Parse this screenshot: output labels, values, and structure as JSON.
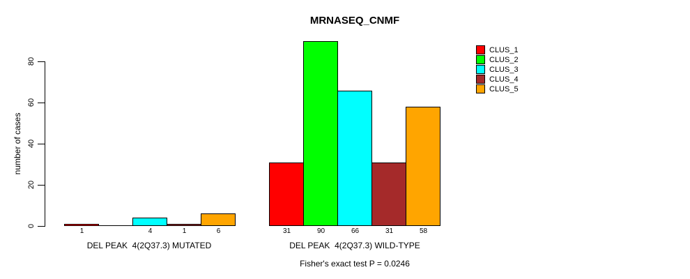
{
  "chart": {
    "title": "MRNASEQ_CNMF",
    "ylabel": "number of cases",
    "annotation": "Fisher's exact test P = 0.0246"
  },
  "chart_data": {
    "type": "bar",
    "title": "MRNASEQ_CNMF",
    "xlabel": "",
    "ylabel": "number of cases",
    "ylim": [
      0,
      90
    ],
    "yticks": [
      0,
      20,
      40,
      60,
      80
    ],
    "grid": false,
    "legend_position": "top-right",
    "categories": [
      "DEL PEAK  4(2Q37.3) MUTATED",
      "DEL PEAK  4(2Q37.3) WILD-TYPE"
    ],
    "series": [
      {
        "name": "CLUS_1",
        "color": "#FF0000",
        "values": [
          1,
          31
        ]
      },
      {
        "name": "CLUS_2",
        "color": "#00FF00",
        "values": [
          0,
          90
        ]
      },
      {
        "name": "CLUS_3",
        "color": "#00FFFF",
        "values": [
          4,
          66
        ]
      },
      {
        "name": "CLUS_4",
        "color": "#A52A2A",
        "values": [
          1,
          31
        ]
      },
      {
        "name": "CLUS_5",
        "color": "#FFA500",
        "values": [
          6,
          58
        ]
      }
    ],
    "bar_value_labels": [
      "1",
      "",
      "4",
      "1",
      "6",
      "31",
      "90",
      "66",
      "31",
      "58"
    ],
    "annotation": "Fisher's exact test P = 0.0246"
  },
  "legend": {
    "items": [
      {
        "label": "CLUS_1",
        "color": "#FF0000"
      },
      {
        "label": "CLUS_2",
        "color": "#00FF00"
      },
      {
        "label": "CLUS_3",
        "color": "#00FFFF"
      },
      {
        "label": "CLUS_4",
        "color": "#A52A2A"
      },
      {
        "label": "CLUS_5",
        "color": "#FFA500"
      }
    ]
  }
}
